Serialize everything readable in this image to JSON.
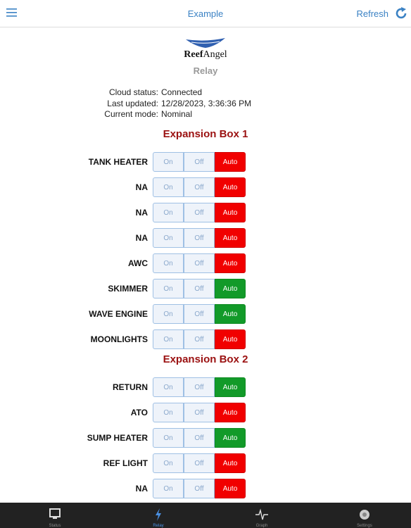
{
  "header": {
    "title": "Example",
    "refresh": "Refresh"
  },
  "logo": {
    "bold": "Reef",
    "rest": "Angel"
  },
  "page_title": "Relay",
  "status": [
    {
      "label": "Cloud status:",
      "value": "Connected"
    },
    {
      "label": "Last updated:",
      "value": "12/28/2023, 3:36:36 PM"
    },
    {
      "label": "Current mode:",
      "value": "Nominal"
    }
  ],
  "modes": [
    "On",
    "Off",
    "Auto"
  ],
  "boxes": [
    {
      "title": "Expansion Box 1",
      "relays": [
        {
          "name": "TANK HEATER",
          "active": false
        },
        {
          "name": "NA",
          "active": false
        },
        {
          "name": "NA",
          "active": false
        },
        {
          "name": "NA",
          "active": false
        },
        {
          "name": "AWC",
          "active": false
        },
        {
          "name": "SKIMMER",
          "active": true
        },
        {
          "name": "WAVE ENGINE",
          "active": true
        },
        {
          "name": "MOONLIGHTS",
          "active": false
        }
      ]
    },
    {
      "title": "Expansion Box 2",
      "relays": [
        {
          "name": "RETURN",
          "active": true
        },
        {
          "name": "ATO",
          "active": false
        },
        {
          "name": "SUMP HEATER",
          "active": true
        },
        {
          "name": "REF LIGHT",
          "active": false
        },
        {
          "name": "NA",
          "active": false
        }
      ]
    }
  ],
  "tabs": {
    "items": [
      "Status",
      "Relay",
      "Graph",
      "Settings"
    ],
    "active": 1
  }
}
